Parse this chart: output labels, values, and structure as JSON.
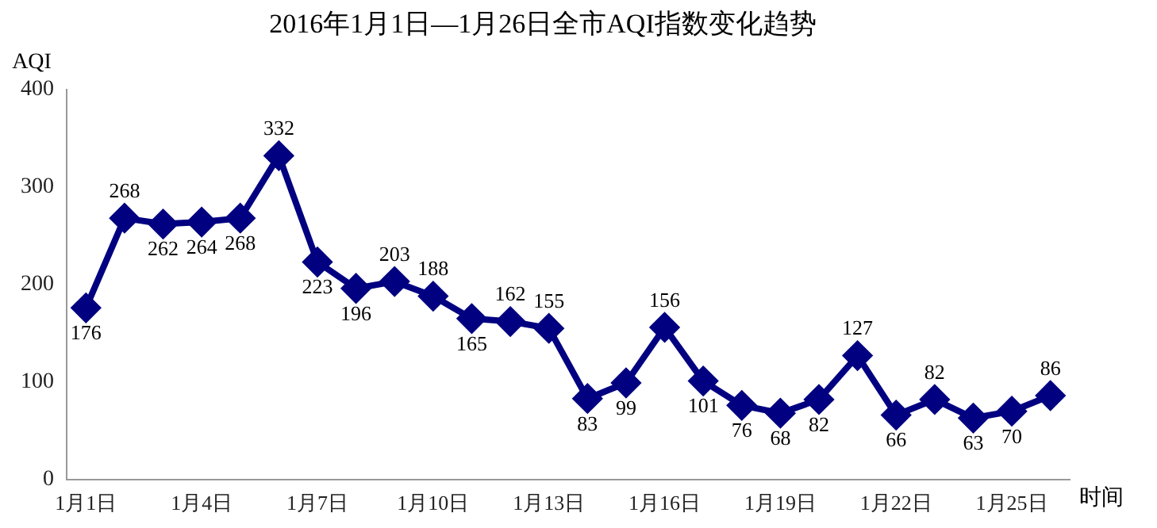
{
  "chart_data": {
    "type": "line",
    "title": "2016年1月1日—1月26日全市AQI指数变化趋势",
    "xlabel": "时间",
    "ylabel": "AQI",
    "categories": [
      "1月1日",
      null,
      null,
      "1月4日",
      null,
      null,
      "1月7日",
      null,
      null,
      "1月10日",
      null,
      null,
      "1月13日",
      null,
      null,
      "1月16日",
      null,
      null,
      "1月19日",
      null,
      null,
      "1月22日",
      null,
      null,
      "1月25日",
      null
    ],
    "series": [
      {
        "color": "#000080",
        "values": [
          176,
          268,
          262,
          264,
          268,
          332,
          223,
          196,
          203,
          188,
          165,
          162,
          155,
          83,
          99,
          156,
          101,
          76,
          68,
          82,
          127,
          66,
          82,
          63,
          70,
          86
        ]
      }
    ],
    "ylim": [
      0,
      400
    ],
    "yticks": [
      0,
      100,
      200,
      300,
      400
    ],
    "grid": false,
    "legend": false,
    "marker": "diamond",
    "line_style": "solid",
    "data_labels": true
  }
}
